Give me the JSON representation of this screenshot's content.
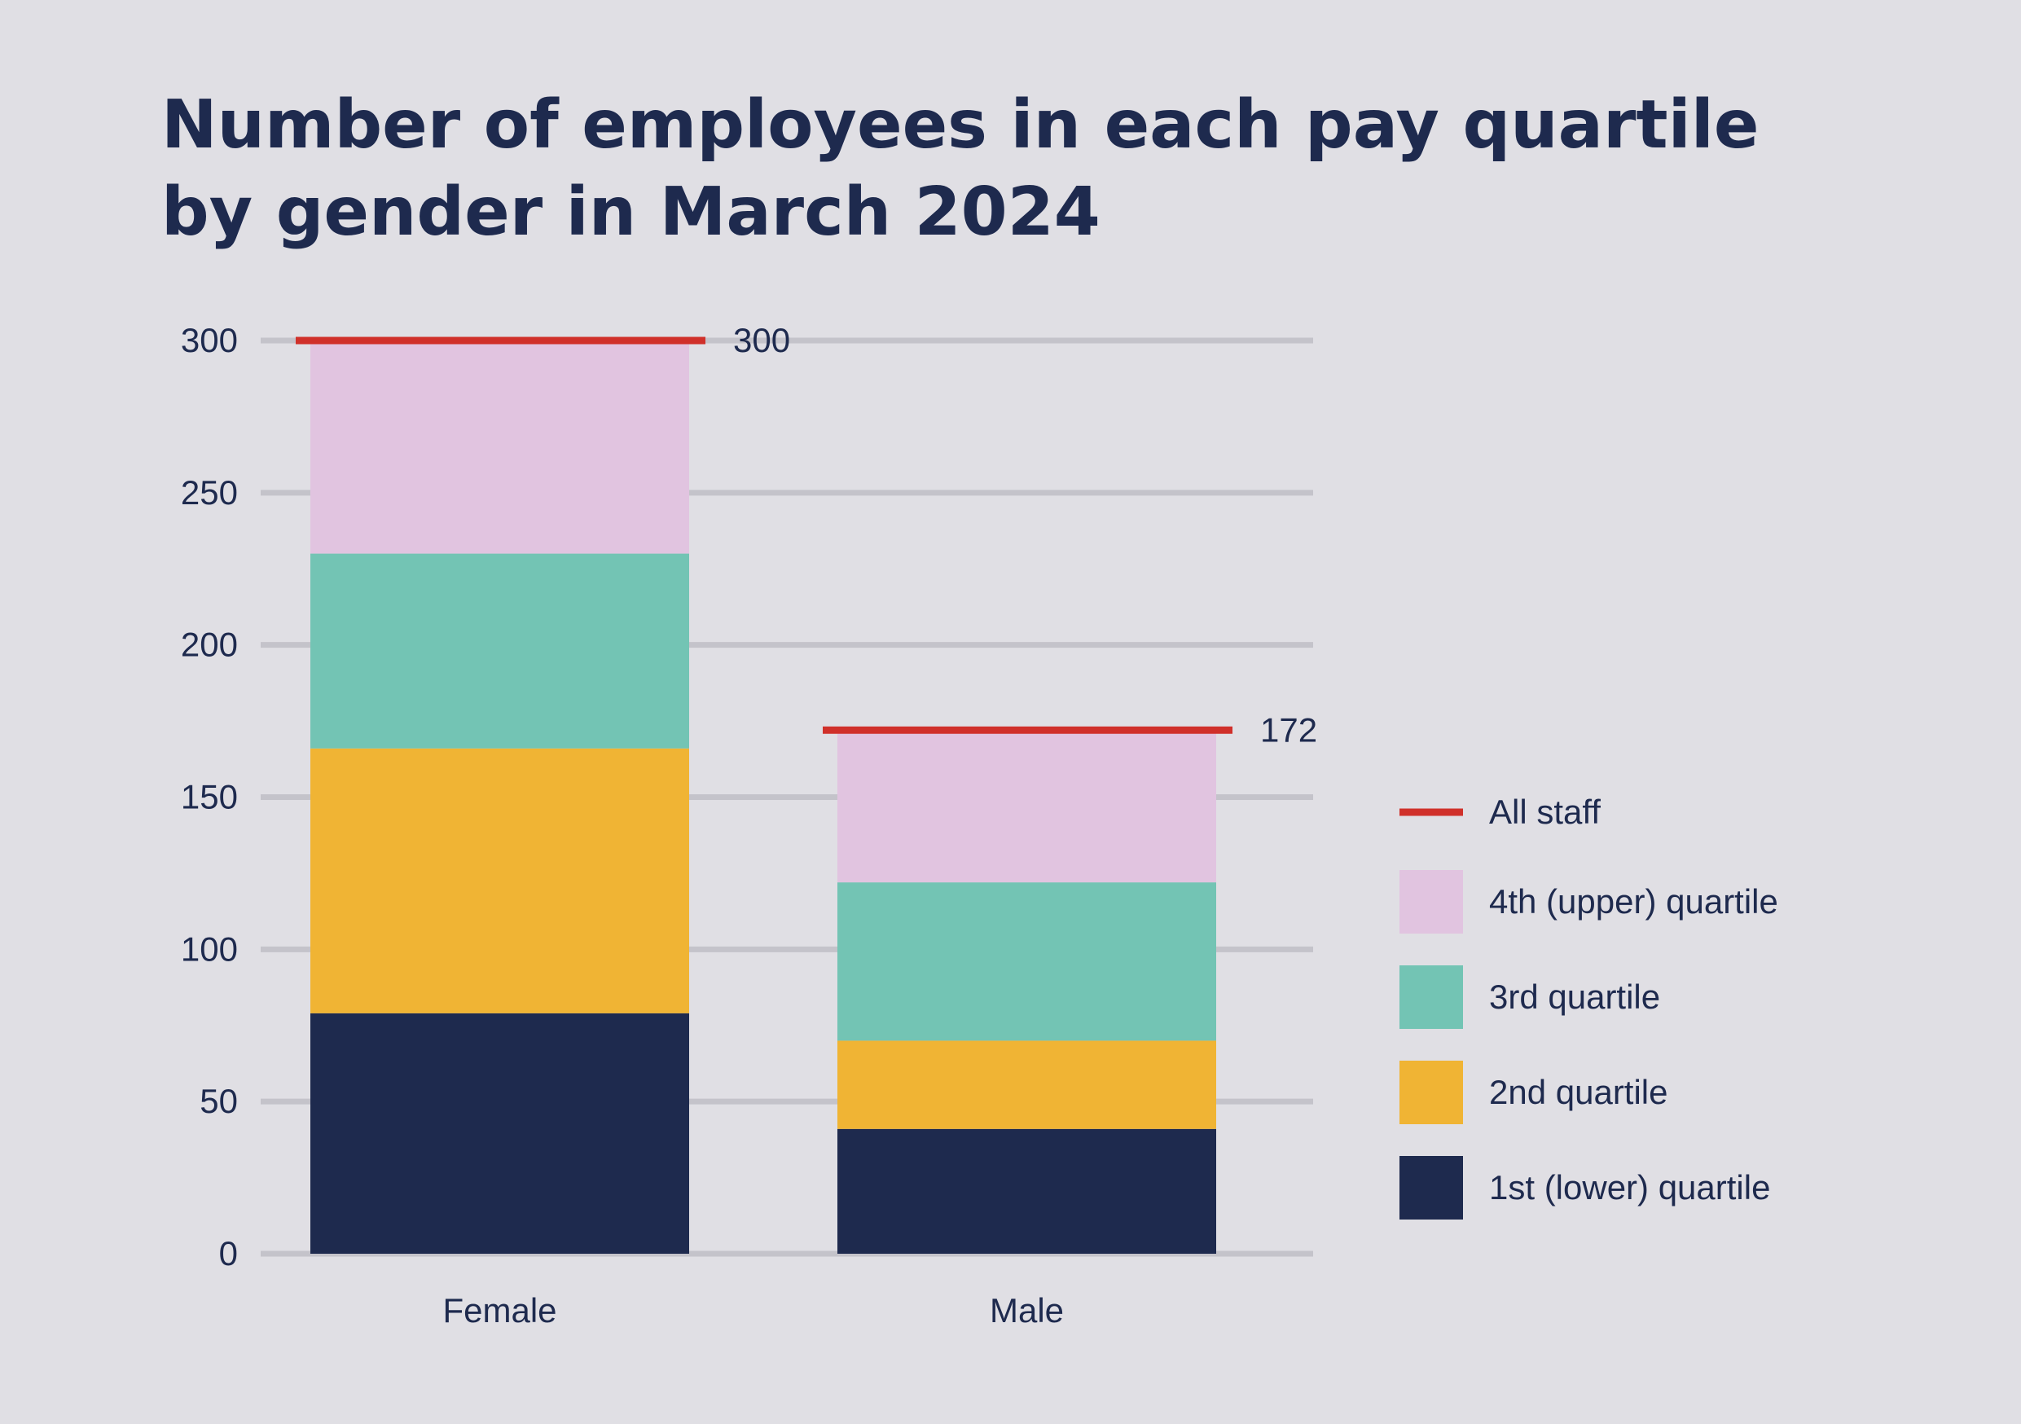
{
  "title": "Number of employees in each pay quartile by gender in March 2024",
  "colors": {
    "background": "#e0dfe4",
    "text": "#1e2a4e",
    "grid": "#c4c3ca",
    "all_staff_line": "#d0302a",
    "q1": "#1e2a4e",
    "q2": "#f0b434",
    "q3": "#73c4b4",
    "q4": "#e1c4e0"
  },
  "chart_data": {
    "type": "bar",
    "stacked": true,
    "categories": [
      "Female",
      "Male"
    ],
    "ylim": [
      0,
      300
    ],
    "yticks": [
      0,
      50,
      100,
      150,
      200,
      250,
      300
    ],
    "grid": true,
    "legend_position": "right",
    "series": [
      {
        "name": "1st (lower) quartile",
        "color_key": "q1",
        "values": [
          79,
          41
        ]
      },
      {
        "name": "2nd quartile",
        "color_key": "q2",
        "values": [
          87,
          29
        ]
      },
      {
        "name": "3rd quartile",
        "color_key": "q3",
        "values": [
          64,
          52
        ]
      },
      {
        "name": "4th (upper) quartile",
        "color_key": "q4",
        "values": [
          70,
          50
        ]
      }
    ],
    "totals": {
      "name": "All staff",
      "values": [
        300,
        172
      ],
      "labels": [
        "300",
        "172"
      ]
    },
    "legend_order": [
      "All staff",
      "4th (upper) quartile",
      "3rd quartile",
      "2nd quartile",
      "1st (lower) quartile"
    ]
  }
}
